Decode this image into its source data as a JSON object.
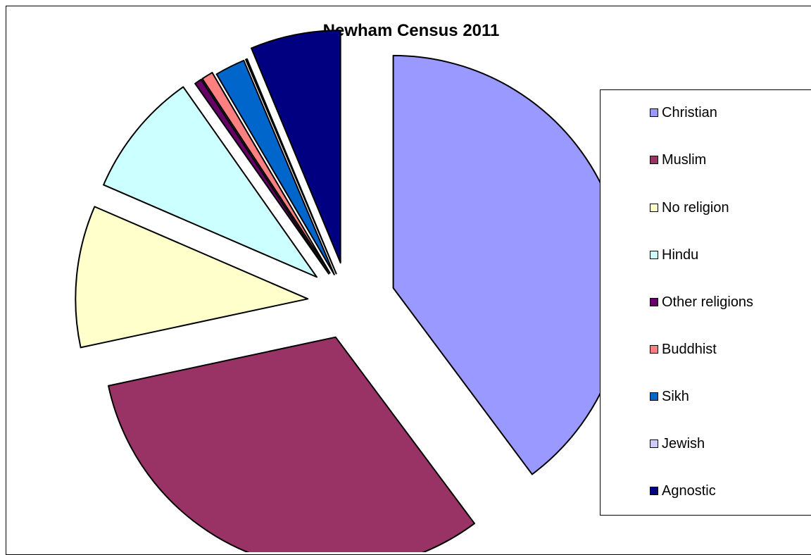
{
  "chart_data": {
    "type": "pie",
    "title": "Newham Census 2011",
    "legend_position": "right",
    "exploded": true,
    "slices": [
      {
        "label": "Christian",
        "value": 40.0,
        "color": "#9999FF"
      },
      {
        "label": "Muslim",
        "value": 32.0,
        "color": "#993366"
      },
      {
        "label": "No religion",
        "value": 9.9,
        "color": "#FFFFCC"
      },
      {
        "label": "Hindu",
        "value": 8.8,
        "color": "#CCFFFF"
      },
      {
        "label": "Other religions",
        "value": 0.5,
        "color": "#660066"
      },
      {
        "label": "Buddhist",
        "value": 0.8,
        "color": "#FF8080"
      },
      {
        "label": "Sikh",
        "value": 2.1,
        "color": "#0066CC"
      },
      {
        "label": "Jewish",
        "value": 0.1,
        "color": "#CCCCFF"
      },
      {
        "label": "Agnostic",
        "value": 6.3,
        "color": "#000080"
      }
    ]
  }
}
